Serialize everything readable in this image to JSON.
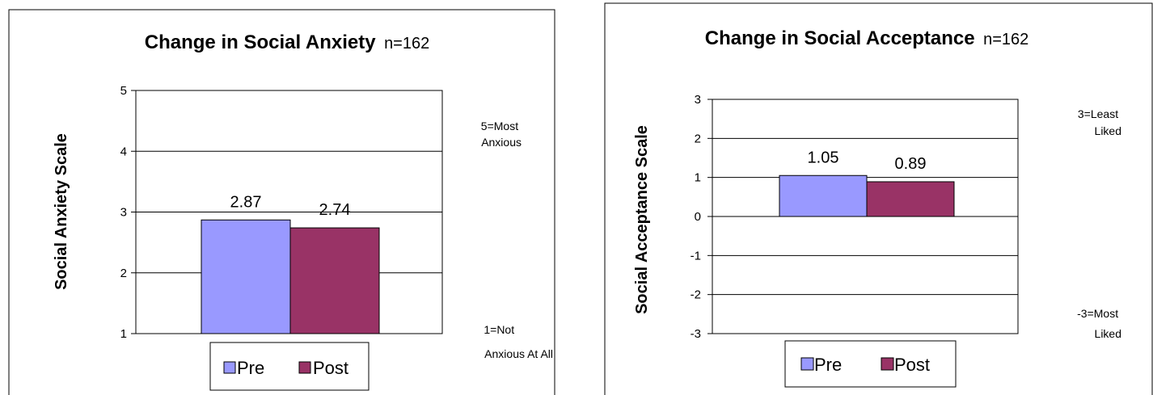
{
  "chart_data": [
    {
      "type": "bar",
      "title": "Change in Social Anxiety",
      "title_suffix": "n=162",
      "ylabel": "Social Anxiety Scale",
      "xlabel": "",
      "ylim": [
        1,
        5
      ],
      "yticks": [
        1,
        2,
        3,
        4,
        5
      ],
      "grid": true,
      "series": [
        {
          "name": "Pre",
          "value": 2.87,
          "label": "2.87",
          "color": "#9999ff"
        },
        {
          "name": "Post",
          "value": 2.74,
          "label": "2.74",
          "color": "#993366"
        }
      ],
      "annotations": {
        "top": [
          "5=Most",
          "Anxious"
        ],
        "bottom": [
          "1=Not",
          "Anxious At All"
        ]
      },
      "legend_placement": "bottom"
    },
    {
      "type": "bar",
      "title": "Change in Social Acceptance",
      "title_suffix": "n=162",
      "ylabel": "Social Acceptance Scale",
      "xlabel": "",
      "ylim": [
        -3,
        3
      ],
      "yticks": [
        -3,
        -2,
        -1,
        0,
        1,
        2,
        3
      ],
      "grid": true,
      "series": [
        {
          "name": "Pre",
          "value": 1.05,
          "label": "1.05",
          "color": "#9999ff"
        },
        {
          "name": "Post",
          "value": 0.89,
          "label": "0.89",
          "color": "#993366"
        }
      ],
      "annotations": {
        "top": [
          "3=Least",
          "Liked"
        ],
        "bottom": [
          "-3=Most",
          "Liked"
        ]
      },
      "legend_placement": "bottom"
    }
  ]
}
